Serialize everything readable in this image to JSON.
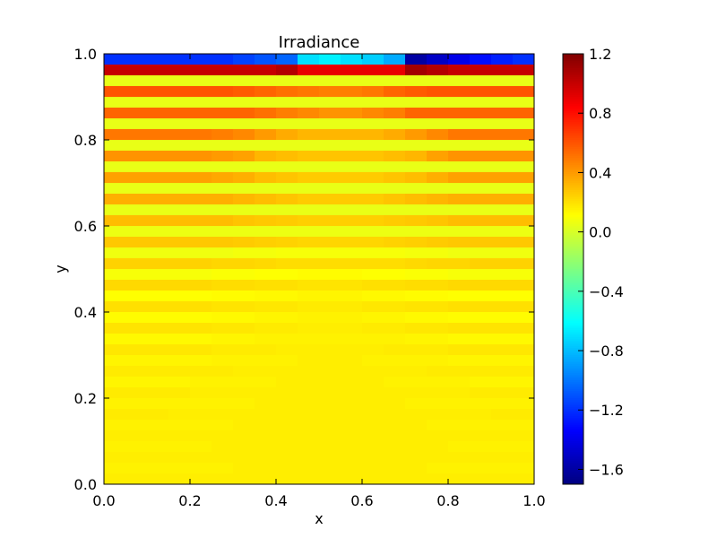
{
  "chart_data": {
    "type": "heatmap",
    "title": "Irradiance",
    "xlabel": "x",
    "ylabel": "y",
    "xlim": [
      0,
      1
    ],
    "ylim": [
      0,
      1
    ],
    "x_ticks": [
      "0.0",
      "0.2",
      "0.4",
      "0.6",
      "0.8",
      "1.0"
    ],
    "y_ticks": [
      "0.0",
      "0.2",
      "0.4",
      "0.6",
      "0.8",
      "1.0"
    ],
    "colorbar": {
      "colormap": "jet",
      "vmin": -1.7,
      "vmax": 1.2,
      "ticks": [
        "1.2",
        "0.8",
        "0.4",
        "0.0",
        "−0.4",
        "−0.8",
        "−1.2",
        "−1.6"
      ],
      "tick_values": [
        1.2,
        0.8,
        0.4,
        0.0,
        -0.4,
        -0.8,
        -1.2,
        -1.6
      ]
    },
    "grid": {
      "columns": 20,
      "rows": 40,
      "x_edges": [
        0,
        1
      ],
      "y_edges": [
        0,
        1
      ],
      "row_values_top_to_bottom": [
        [
          -1.2,
          -1.2,
          -1.2,
          -1.2,
          -1.2,
          -1.2,
          -1.15,
          -1.1,
          -1.05,
          -0.7,
          -0.65,
          -0.7,
          -0.75,
          -0.85,
          -1.6,
          -1.5,
          -1.4,
          -1.3,
          -1.25,
          -1.2
        ],
        [
          1.0,
          1.0,
          1.0,
          1.0,
          1.0,
          1.0,
          1.0,
          1.0,
          1.05,
          0.9,
          0.9,
          0.9,
          0.9,
          0.9,
          1.1,
          1.05,
          1.0,
          1.0,
          1.0,
          1.0
        ],
        [
          0.05,
          0.05,
          0.05,
          0.05,
          0.05,
          0.05,
          0.05,
          0.05,
          0.05,
          0.05,
          0.05,
          0.05,
          0.05,
          0.05,
          0.05,
          0.05,
          0.05,
          0.05,
          0.05,
          0.05
        ],
        [
          0.6,
          0.6,
          0.6,
          0.6,
          0.6,
          0.6,
          0.58,
          0.55,
          0.52,
          0.5,
          0.48,
          0.48,
          0.5,
          0.55,
          0.58,
          0.6,
          0.6,
          0.6,
          0.6,
          0.6
        ],
        [
          0.05,
          0.05,
          0.05,
          0.05,
          0.05,
          0.05,
          0.05,
          0.05,
          0.05,
          0.05,
          0.05,
          0.05,
          0.05,
          0.05,
          0.05,
          0.05,
          0.05,
          0.05,
          0.05,
          0.05
        ],
        [
          0.55,
          0.55,
          0.55,
          0.55,
          0.55,
          0.55,
          0.55,
          0.52,
          0.48,
          0.45,
          0.42,
          0.42,
          0.45,
          0.48,
          0.55,
          0.55,
          0.55,
          0.55,
          0.55,
          0.55
        ],
        [
          0.05,
          0.05,
          0.05,
          0.05,
          0.05,
          0.05,
          0.05,
          0.05,
          0.05,
          0.05,
          0.05,
          0.05,
          0.05,
          0.05,
          0.05,
          0.05,
          0.05,
          0.05,
          0.05,
          0.05
        ],
        [
          0.5,
          0.5,
          0.5,
          0.5,
          0.5,
          0.48,
          0.45,
          0.4,
          0.35,
          0.32,
          0.32,
          0.32,
          0.32,
          0.35,
          0.4,
          0.45,
          0.5,
          0.5,
          0.5,
          0.5
        ],
        [
          0.05,
          0.05,
          0.05,
          0.05,
          0.05,
          0.05,
          0.05,
          0.05,
          0.05,
          0.05,
          0.05,
          0.05,
          0.05,
          0.05,
          0.05,
          0.05,
          0.05,
          0.05,
          0.05,
          0.05
        ],
        [
          0.42,
          0.42,
          0.42,
          0.42,
          0.42,
          0.4,
          0.38,
          0.32,
          0.3,
          0.28,
          0.28,
          0.28,
          0.28,
          0.3,
          0.32,
          0.38,
          0.42,
          0.42,
          0.42,
          0.42
        ],
        [
          0.05,
          0.05,
          0.05,
          0.05,
          0.05,
          0.05,
          0.05,
          0.05,
          0.05,
          0.05,
          0.05,
          0.05,
          0.05,
          0.05,
          0.05,
          0.05,
          0.05,
          0.05,
          0.05,
          0.05
        ],
        [
          0.38,
          0.38,
          0.38,
          0.38,
          0.38,
          0.36,
          0.34,
          0.3,
          0.28,
          0.26,
          0.26,
          0.26,
          0.26,
          0.28,
          0.3,
          0.34,
          0.38,
          0.38,
          0.38,
          0.38
        ],
        [
          0.05,
          0.05,
          0.05,
          0.05,
          0.05,
          0.05,
          0.05,
          0.05,
          0.05,
          0.05,
          0.05,
          0.05,
          0.05,
          0.05,
          0.05,
          0.05,
          0.05,
          0.05,
          0.05,
          0.05
        ],
        [
          0.34,
          0.34,
          0.34,
          0.34,
          0.34,
          0.34,
          0.32,
          0.3,
          0.28,
          0.26,
          0.26,
          0.26,
          0.26,
          0.28,
          0.3,
          0.32,
          0.34,
          0.34,
          0.34,
          0.34
        ],
        [
          0.05,
          0.05,
          0.05,
          0.05,
          0.05,
          0.05,
          0.05,
          0.05,
          0.05,
          0.05,
          0.05,
          0.05,
          0.05,
          0.05,
          0.05,
          0.05,
          0.05,
          0.05,
          0.05,
          0.05
        ],
        [
          0.3,
          0.3,
          0.3,
          0.3,
          0.3,
          0.3,
          0.28,
          0.27,
          0.26,
          0.25,
          0.25,
          0.25,
          0.25,
          0.26,
          0.27,
          0.28,
          0.3,
          0.3,
          0.3,
          0.3
        ],
        [
          0.06,
          0.06,
          0.06,
          0.06,
          0.06,
          0.06,
          0.06,
          0.06,
          0.06,
          0.06,
          0.06,
          0.06,
          0.06,
          0.06,
          0.06,
          0.06,
          0.06,
          0.06,
          0.06,
          0.06
        ],
        [
          0.27,
          0.27,
          0.27,
          0.27,
          0.27,
          0.27,
          0.26,
          0.25,
          0.24,
          0.23,
          0.23,
          0.23,
          0.23,
          0.24,
          0.25,
          0.26,
          0.27,
          0.27,
          0.27,
          0.27
        ],
        [
          0.07,
          0.07,
          0.07,
          0.07,
          0.07,
          0.07,
          0.08,
          0.08,
          0.09,
          0.09,
          0.09,
          0.09,
          0.09,
          0.09,
          0.08,
          0.08,
          0.07,
          0.07,
          0.07,
          0.07
        ],
        [
          0.24,
          0.24,
          0.24,
          0.24,
          0.24,
          0.23,
          0.23,
          0.22,
          0.21,
          0.21,
          0.21,
          0.21,
          0.21,
          0.21,
          0.22,
          0.23,
          0.23,
          0.24,
          0.24,
          0.24
        ],
        [
          0.09,
          0.09,
          0.09,
          0.09,
          0.09,
          0.1,
          0.1,
          0.11,
          0.11,
          0.12,
          0.12,
          0.12,
          0.11,
          0.11,
          0.1,
          0.1,
          0.09,
          0.09,
          0.09,
          0.09
        ],
        [
          0.22,
          0.22,
          0.22,
          0.22,
          0.22,
          0.21,
          0.21,
          0.2,
          0.2,
          0.19,
          0.19,
          0.19,
          0.2,
          0.2,
          0.21,
          0.21,
          0.22,
          0.22,
          0.22,
          0.22
        ],
        [
          0.11,
          0.11,
          0.11,
          0.11,
          0.11,
          0.12,
          0.12,
          0.13,
          0.13,
          0.14,
          0.14,
          0.14,
          0.13,
          0.13,
          0.12,
          0.12,
          0.11,
          0.11,
          0.11,
          0.11
        ],
        [
          0.2,
          0.2,
          0.2,
          0.2,
          0.2,
          0.19,
          0.19,
          0.18,
          0.18,
          0.17,
          0.17,
          0.17,
          0.18,
          0.18,
          0.19,
          0.19,
          0.2,
          0.2,
          0.2,
          0.2
        ],
        [
          0.12,
          0.12,
          0.12,
          0.12,
          0.12,
          0.13,
          0.13,
          0.14,
          0.14,
          0.15,
          0.15,
          0.15,
          0.14,
          0.14,
          0.13,
          0.13,
          0.12,
          0.12,
          0.12,
          0.12
        ],
        [
          0.19,
          0.19,
          0.19,
          0.19,
          0.19,
          0.18,
          0.18,
          0.17,
          0.17,
          0.16,
          0.16,
          0.16,
          0.17,
          0.17,
          0.18,
          0.18,
          0.19,
          0.19,
          0.19,
          0.19
        ],
        [
          0.13,
          0.13,
          0.13,
          0.13,
          0.13,
          0.14,
          0.14,
          0.15,
          0.15,
          0.15,
          0.15,
          0.15,
          0.15,
          0.15,
          0.14,
          0.14,
          0.13,
          0.13,
          0.13,
          0.13
        ],
        [
          0.18,
          0.18,
          0.18,
          0.18,
          0.18,
          0.17,
          0.17,
          0.17,
          0.16,
          0.16,
          0.16,
          0.16,
          0.16,
          0.17,
          0.17,
          0.17,
          0.18,
          0.18,
          0.18,
          0.18
        ],
        [
          0.14,
          0.14,
          0.14,
          0.14,
          0.14,
          0.15,
          0.15,
          0.15,
          0.15,
          0.16,
          0.16,
          0.16,
          0.15,
          0.15,
          0.15,
          0.15,
          0.14,
          0.14,
          0.14,
          0.14
        ],
        [
          0.17,
          0.17,
          0.17,
          0.17,
          0.17,
          0.17,
          0.16,
          0.16,
          0.16,
          0.16,
          0.16,
          0.16,
          0.16,
          0.16,
          0.16,
          0.17,
          0.17,
          0.17,
          0.17,
          0.17
        ],
        [
          0.14,
          0.14,
          0.14,
          0.14,
          0.15,
          0.15,
          0.15,
          0.15,
          0.16,
          0.16,
          0.16,
          0.16,
          0.16,
          0.15,
          0.15,
          0.15,
          0.15,
          0.14,
          0.14,
          0.14
        ],
        [
          0.17,
          0.17,
          0.17,
          0.17,
          0.16,
          0.16,
          0.16,
          0.16,
          0.16,
          0.16,
          0.16,
          0.16,
          0.16,
          0.16,
          0.16,
          0.16,
          0.16,
          0.17,
          0.17,
          0.17
        ],
        [
          0.15,
          0.15,
          0.15,
          0.15,
          0.15,
          0.15,
          0.15,
          0.16,
          0.16,
          0.16,
          0.16,
          0.16,
          0.16,
          0.16,
          0.15,
          0.15,
          0.15,
          0.15,
          0.15,
          0.15
        ],
        [
          0.17,
          0.17,
          0.17,
          0.16,
          0.16,
          0.16,
          0.16,
          0.16,
          0.16,
          0.16,
          0.16,
          0.16,
          0.16,
          0.16,
          0.16,
          0.16,
          0.16,
          0.16,
          0.17,
          0.17
        ],
        [
          0.15,
          0.15,
          0.15,
          0.15,
          0.15,
          0.15,
          0.16,
          0.16,
          0.16,
          0.16,
          0.16,
          0.16,
          0.16,
          0.16,
          0.16,
          0.15,
          0.15,
          0.15,
          0.15,
          0.15
        ],
        [
          0.16,
          0.16,
          0.16,
          0.16,
          0.16,
          0.16,
          0.16,
          0.16,
          0.16,
          0.16,
          0.16,
          0.16,
          0.16,
          0.16,
          0.16,
          0.16,
          0.16,
          0.16,
          0.16,
          0.16
        ],
        [
          0.15,
          0.15,
          0.15,
          0.15,
          0.15,
          0.16,
          0.16,
          0.16,
          0.16,
          0.16,
          0.16,
          0.16,
          0.16,
          0.16,
          0.16,
          0.16,
          0.15,
          0.15,
          0.15,
          0.15
        ],
        [
          0.16,
          0.16,
          0.16,
          0.16,
          0.16,
          0.16,
          0.16,
          0.16,
          0.16,
          0.16,
          0.16,
          0.16,
          0.16,
          0.16,
          0.16,
          0.16,
          0.16,
          0.16,
          0.16,
          0.16
        ],
        [
          0.15,
          0.15,
          0.15,
          0.15,
          0.15,
          0.15,
          0.16,
          0.16,
          0.16,
          0.16,
          0.16,
          0.16,
          0.16,
          0.16,
          0.16,
          0.15,
          0.15,
          0.15,
          0.15,
          0.15
        ],
        [
          0.16,
          0.16,
          0.16,
          0.16,
          0.16,
          0.16,
          0.16,
          0.16,
          0.16,
          0.16,
          0.16,
          0.16,
          0.16,
          0.16,
          0.16,
          0.16,
          0.16,
          0.16,
          0.16,
          0.16
        ]
      ]
    }
  }
}
